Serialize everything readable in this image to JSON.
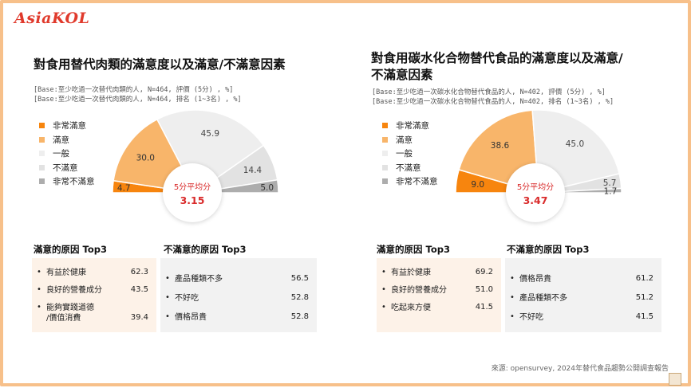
{
  "brand": {
    "logo_text": "AsiaKOL"
  },
  "legend_labels": [
    "非常滿意",
    "滿意",
    "一般",
    "不滿意",
    "非常不滿意"
  ],
  "colors": {
    "very_satisfied": "#f7850e",
    "satisfied": "#f8b56a",
    "neutral": "#eeeeee",
    "dissatisfied": "#e2e2e2",
    "very_dissatisfied": "#adadad"
  },
  "left": {
    "title_lines": [
      "對食用替代肉類的滿意度以及滿意/不滿意因素"
    ],
    "base_lines": [
      "[Base:至少吃過一次替代肉類的人, N=464, 評價 (5分) , %]",
      "[Base:至少吃過一次替代肉類的人, N=464, 排名 (1~3名) , %]"
    ],
    "avg_label": "5分平均分",
    "avg_value": "3.15",
    "satisfied_title": "滿意的原因 Top3",
    "satisfied_reasons": [
      {
        "label": "有益於健康",
        "value": "62.3"
      },
      {
        "label": "良好的營養成分",
        "value": "43.5"
      },
      {
        "label": "能夠實踐道德\n/價值消費",
        "value": "39.4"
      }
    ],
    "dissatisfied_title": "不滿意的原因 Top3",
    "dissatisfied_reasons": [
      {
        "label": "產品種類不多",
        "value": "56.5"
      },
      {
        "label": "不好吃",
        "value": "52.8"
      },
      {
        "label": "價格昂貴",
        "value": "52.8"
      }
    ]
  },
  "right": {
    "title_lines": [
      "對食用碳水化合物替代食品的滿意度以及滿意/",
      "不滿意因素"
    ],
    "base_lines": [
      "[Base:至少吃過一次碳水化合物替代食品的人, N=402, 評價 (5分) , %]",
      "[Base:至少吃過一次碳水化合物替代食品的人, N=402, 排名 (1~3名) , %]"
    ],
    "avg_label": "5分平均分",
    "avg_value": "3.47",
    "satisfied_title": "滿意的原因 Top3",
    "satisfied_reasons": [
      {
        "label": "有益於健康",
        "value": "69.2"
      },
      {
        "label": "良好的營養成分",
        "value": "51.0"
      },
      {
        "label": "吃起來方便",
        "value": "41.5"
      }
    ],
    "dissatisfied_title": "不滿意的原因 Top3",
    "dissatisfied_reasons": [
      {
        "label": "價格昂貴",
        "value": "61.2"
      },
      {
        "label": "產品種類不多",
        "value": "51.2"
      },
      {
        "label": "不好吃",
        "value": "41.5"
      }
    ]
  },
  "source": "來源: opensurvey, 2024年替代食品趨勢公開調查報告",
  "chart_data": [
    {
      "type": "pie",
      "subtype": "semi-donut",
      "title": "對食用替代肉類的滿意度以及滿意/不滿意因素",
      "categories": [
        "非常滿意",
        "滿意",
        "一般",
        "不滿意",
        "非常不滿意"
      ],
      "values": [
        4.7,
        30.0,
        45.9,
        14.4,
        5.0
      ],
      "value_labels": [
        "4.7",
        "30.0",
        "45.9",
        "14.4",
        "5.0"
      ],
      "legend_position": "left"
    },
    {
      "type": "pie",
      "subtype": "semi-donut",
      "title": "對食用碳水化合物替代食品的滿意度以及滿意/不滿意因素",
      "categories": [
        "非常滿意",
        "滿意",
        "一般",
        "不滿意",
        "非常不滿意"
      ],
      "values": [
        9.0,
        38.6,
        45.0,
        5.7,
        1.7
      ],
      "value_labels": [
        "9.0",
        "38.6",
        "45.0",
        "5.7",
        "1.7"
      ],
      "legend_position": "left"
    }
  ]
}
